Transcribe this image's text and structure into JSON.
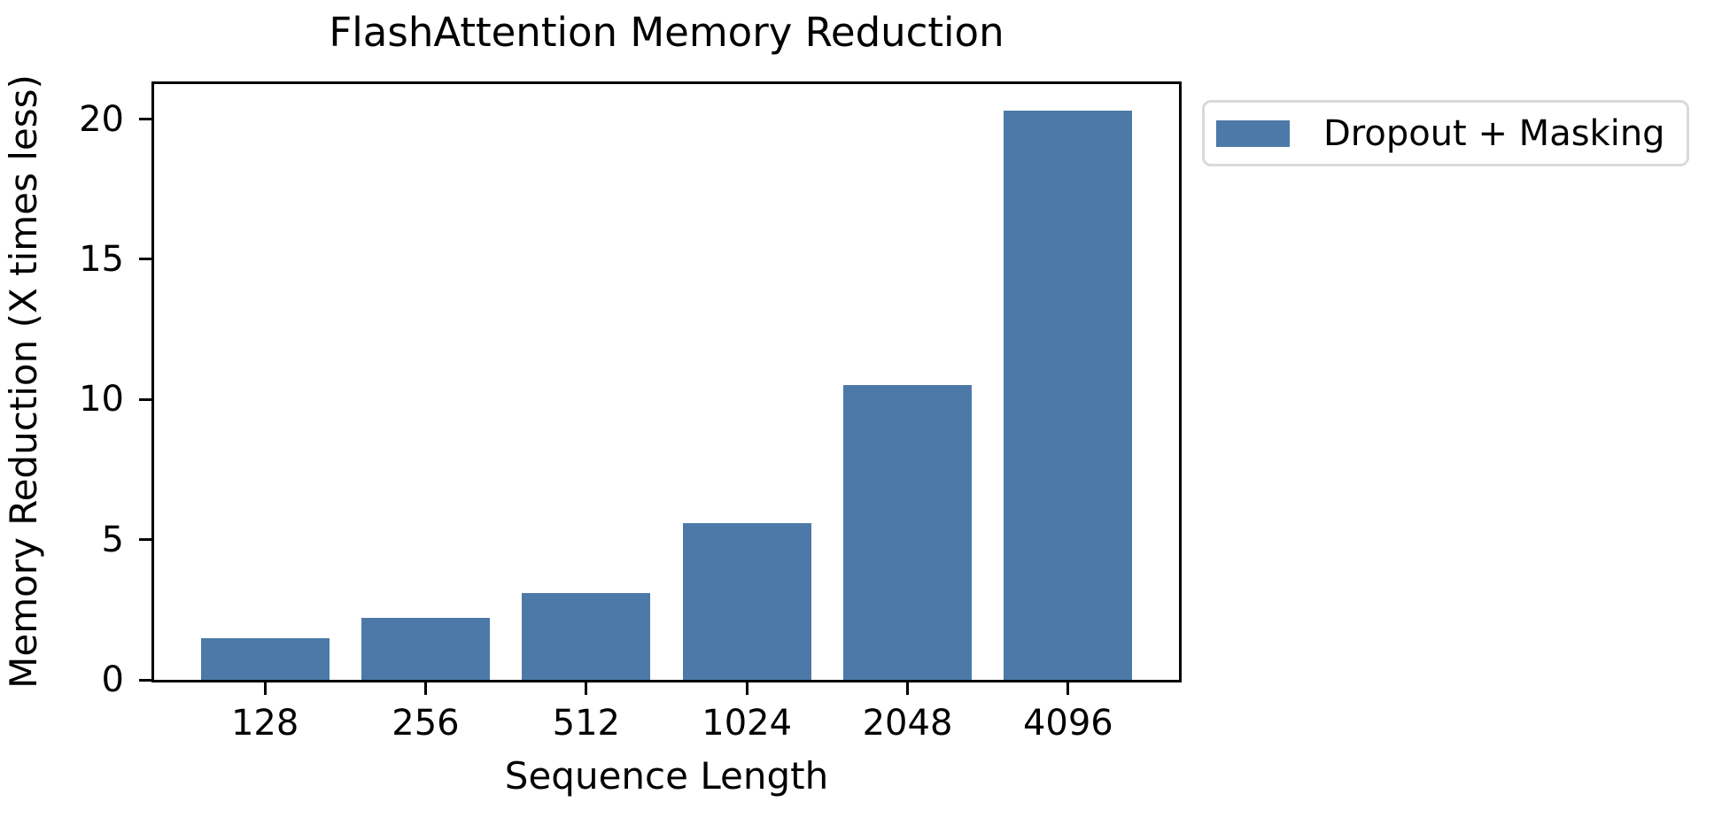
{
  "chart_data": {
    "type": "bar",
    "title": "FlashAttention Memory Reduction",
    "xlabel": "Sequence Length",
    "ylabel": "Memory Reduction (X times less)",
    "categories": [
      "128",
      "256",
      "512",
      "1024",
      "2048",
      "4096"
    ],
    "values": [
      1.5,
      2.2,
      3.1,
      5.6,
      10.5,
      20.3
    ],
    "series": [
      {
        "name": "Dropout + Masking",
        "color": "#4C79A7"
      }
    ],
    "yticks": [
      0,
      5,
      10,
      15,
      20
    ],
    "ylim": [
      0,
      21.25
    ],
    "x_range_units": [
      -0.69,
      5.69
    ],
    "bar_width_units": 0.8,
    "grid": false,
    "legend": {
      "label": "Dropout + Masking",
      "position": "outside-upper-right"
    },
    "axis_color": "#000000",
    "background_color": "#ffffff"
  }
}
